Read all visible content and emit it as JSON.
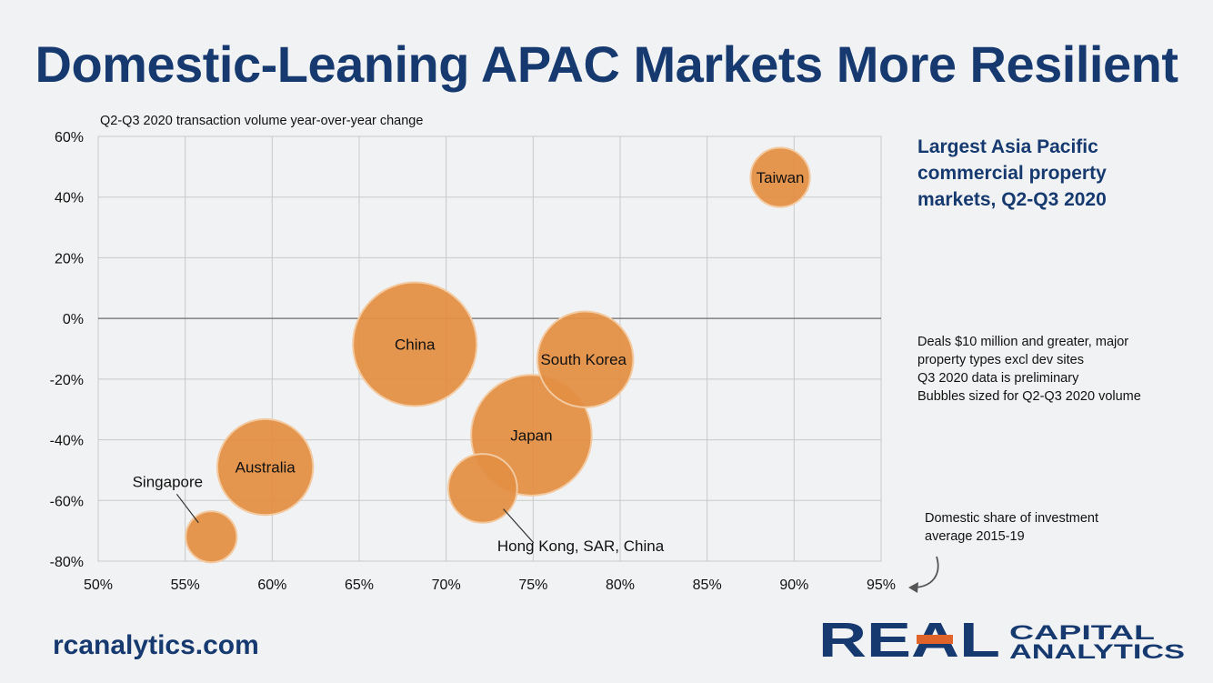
{
  "title": "Domestic-Leaning APAC Markets More Resilient",
  "side_title_lines": [
    "Largest Asia Pacific",
    "commercial property",
    "markets, Q2-Q3 2020"
  ],
  "notes": [
    "Deals $10 million and greater, major",
    "property types excl dev sites",
    "Q3 2020 data is preliminary",
    "Bubbles sized for Q2-Q3 2020 volume"
  ],
  "x_axis_note": [
    "Domestic share of investment",
    "average 2015-19"
  ],
  "footer": {
    "url": "rcanalytics.com"
  },
  "logo": {
    "word": "REAL",
    "line1": "CAPITAL",
    "line2": "ANALYTICS",
    "colors": {
      "navy": "#163a70",
      "orange": "#e0632a"
    }
  },
  "colors": {
    "bubble": "#e38f45",
    "bubble_stroke": "#f3c9a0",
    "grid": "#c9c9c9",
    "zero_line": "#6b6b6b"
  },
  "chart_data": {
    "type": "bubble",
    "title": "",
    "ylabel": "Q2-Q3 2020 transaction volume year-over-year change",
    "xlabel": "Domestic share of investment average 2015-19",
    "xlim": [
      50,
      95
    ],
    "ylim": [
      -80,
      60
    ],
    "x_ticks": [
      "50%",
      "55%",
      "60%",
      "65%",
      "70%",
      "75%",
      "80%",
      "85%",
      "90%",
      "95%"
    ],
    "y_ticks": [
      "60%",
      "40%",
      "20%",
      "0%",
      "-20%",
      "-40%",
      "-60%",
      "-80%"
    ],
    "grid": true,
    "points": [
      {
        "label": "China",
        "x": 68.2,
        "y": -8.5,
        "size": 100
      },
      {
        "label": "Japan",
        "x": 74.9,
        "y": -38.5,
        "size": 95
      },
      {
        "label": "South Korea",
        "x": 78.0,
        "y": -13.5,
        "size": 60
      },
      {
        "label": "Australia",
        "x": 59.6,
        "y": -49.0,
        "size": 60
      },
      {
        "label": "Hong Kong, SAR, China",
        "x": 72.1,
        "y": -56.0,
        "size": 31
      },
      {
        "label": "Taiwan",
        "x": 89.2,
        "y": 46.5,
        "size": 23
      },
      {
        "label": "Singapore",
        "x": 56.5,
        "y": -72.0,
        "size": 17
      }
    ]
  }
}
